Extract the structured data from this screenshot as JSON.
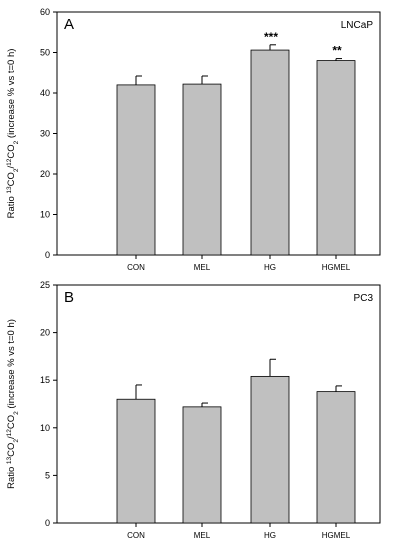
{
  "chart_data": [
    {
      "type": "bar",
      "panel_label": "A",
      "title": "LNCaP",
      "ylabel_main": "Ratio ",
      "ylabel_parts": [
        {
          "t": "Ratio ",
          "s": ""
        },
        {
          "t": "13",
          "s": "sup"
        },
        {
          "t": "CO",
          "s": ""
        },
        {
          "t": "2",
          "s": "sub"
        },
        {
          "t": "/",
          "s": ""
        },
        {
          "t": "12",
          "s": "sup"
        },
        {
          "t": "CO",
          "s": ""
        },
        {
          "t": "2",
          "s": "sub"
        },
        {
          "t": " (increase % vs t=0 h)",
          "s": ""
        }
      ],
      "categories": [
        "CON",
        "MEL",
        "HG",
        "HGMEL"
      ],
      "values": [
        42,
        42.2,
        50.6,
        48
      ],
      "errors": [
        2.2,
        2.0,
        1.3,
        0.5
      ],
      "annotations": [
        "",
        "",
        "***",
        "**"
      ],
      "ylim": [
        0,
        60
      ],
      "yticks": [
        0,
        10,
        20,
        30,
        40,
        50,
        60
      ],
      "bar_color": "#c0c0c0"
    },
    {
      "type": "bar",
      "panel_label": "B",
      "title": "PC3",
      "ylabel_parts": [
        {
          "t": "Ratio ",
          "s": ""
        },
        {
          "t": "13",
          "s": "sup"
        },
        {
          "t": "CO",
          "s": ""
        },
        {
          "t": "2",
          "s": "sub"
        },
        {
          "t": "/",
          "s": ""
        },
        {
          "t": "12",
          "s": "sup"
        },
        {
          "t": "CO",
          "s": ""
        },
        {
          "t": "2",
          "s": "sub"
        },
        {
          "t": " (increase % vs t=0 h)",
          "s": ""
        }
      ],
      "categories": [
        "CON",
        "MEL",
        "HG",
        "HGMEL"
      ],
      "values": [
        13,
        12.2,
        15.4,
        13.8
      ],
      "errors": [
        1.5,
        0.4,
        1.8,
        0.6
      ],
      "annotations": [
        "",
        "",
        "",
        ""
      ],
      "ylim": [
        0,
        25
      ],
      "yticks": [
        0,
        5,
        10,
        15,
        20,
        25
      ],
      "bar_color": "#c0c0c0"
    }
  ]
}
